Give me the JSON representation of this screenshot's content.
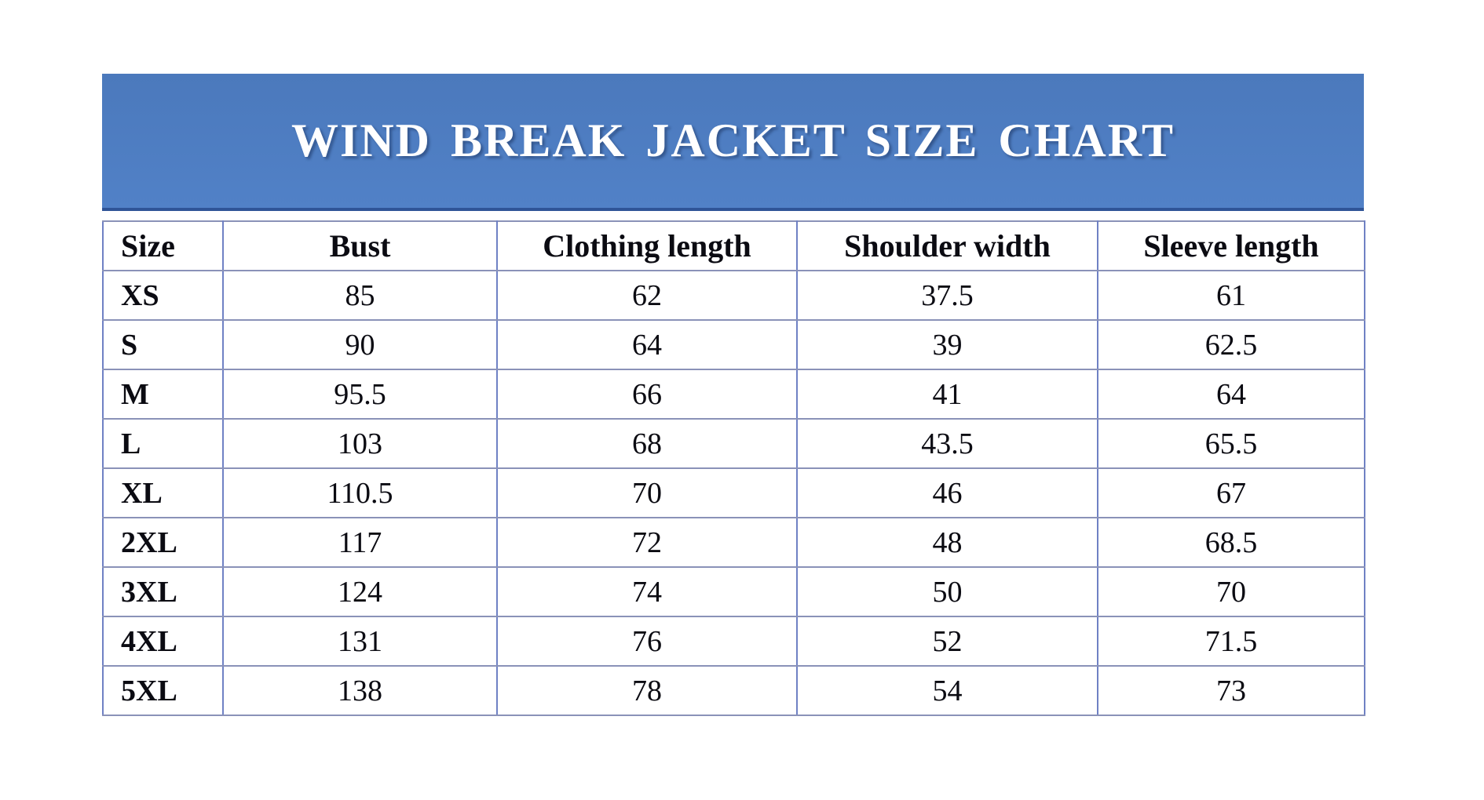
{
  "banner": {
    "title": "WIND BREAK JACKET SIZE CHART"
  },
  "chart_data": {
    "type": "table",
    "title": "WIND BREAK JACKET SIZE CHART",
    "columns": [
      "Size",
      "Bust",
      "Clothing length",
      "Shoulder width",
      "Sleeve length"
    ],
    "rows": [
      [
        "XS",
        "85",
        "62",
        "37.5",
        "61"
      ],
      [
        "S",
        "90",
        "64",
        "39",
        "62.5"
      ],
      [
        "M",
        "95.5",
        "66",
        "41",
        "64"
      ],
      [
        "L",
        "103",
        "68",
        "43.5",
        "65.5"
      ],
      [
        "XL",
        "110.5",
        "70",
        "46",
        "67"
      ],
      [
        "2XL",
        "117",
        "72",
        "48",
        "68.5"
      ],
      [
        "3XL",
        "124",
        "74",
        "50",
        "70"
      ],
      [
        "4XL",
        "131",
        "76",
        "52",
        "71.5"
      ],
      [
        "5XL",
        "138",
        "78",
        "54",
        "73"
      ]
    ],
    "layout_hints": {
      "header_row": true,
      "grid": "on",
      "first_column_align": "left",
      "value_columns_align": "center"
    }
  },
  "colors": {
    "banner_blue_top": "#4b79bc",
    "banner_blue_bottom": "#5181c7",
    "banner_edge": "#2f5497",
    "grid_horizontal": "#8a92b8",
    "grid_vertical": "#6f81c4",
    "title_text": "#ffffff",
    "cell_text": "#0b0b12",
    "page_bg": "#ffffff"
  }
}
